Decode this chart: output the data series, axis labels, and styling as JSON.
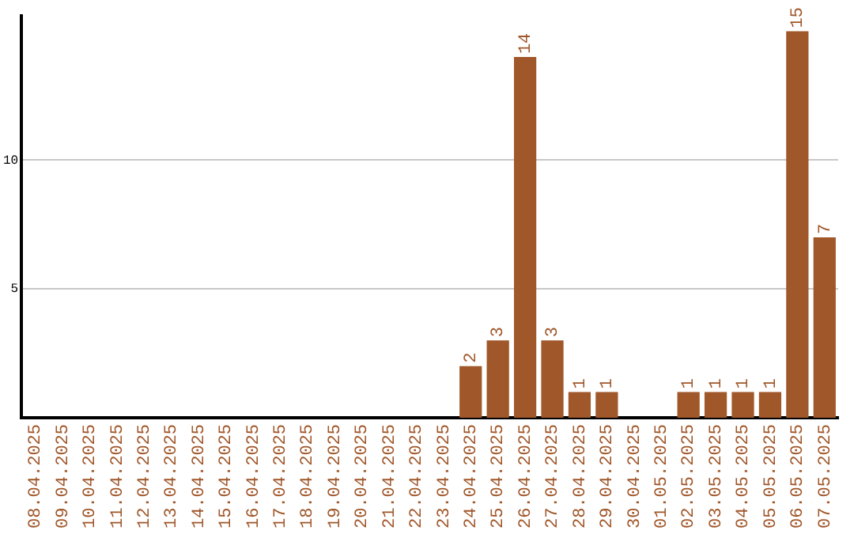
{
  "chart_data": {
    "type": "bar",
    "categories": [
      "08.04.2025",
      "09.04.2025",
      "10.04.2025",
      "11.04.2025",
      "12.04.2025",
      "13.04.2025",
      "14.04.2025",
      "15.04.2025",
      "16.04.2025",
      "17.04.2025",
      "18.04.2025",
      "19.04.2025",
      "20.04.2025",
      "21.04.2025",
      "22.04.2025",
      "23.04.2025",
      "24.04.2025",
      "25.04.2025",
      "26.04.2025",
      "27.04.2025",
      "28.04.2025",
      "29.04.2025",
      "30.04.2025",
      "01.05.2025",
      "02.05.2025",
      "03.05.2025",
      "04.05.2025",
      "05.05.2025",
      "06.05.2025",
      "07.05.2025"
    ],
    "values": [
      0,
      0,
      0,
      0,
      0,
      0,
      0,
      0,
      0,
      0,
      0,
      0,
      0,
      0,
      0,
      0,
      2,
      3,
      14,
      3,
      1,
      1,
      0,
      0,
      1,
      1,
      1,
      1,
      15,
      7
    ],
    "value_labels": [
      null,
      null,
      null,
      null,
      null,
      null,
      null,
      null,
      null,
      null,
      null,
      null,
      null,
      null,
      null,
      null,
      "2",
      "3",
      "14",
      "3",
      "1",
      "1",
      null,
      null,
      "1",
      "1",
      "1",
      "1",
      "15",
      "7"
    ],
    "color": "#a0572a",
    "ylim": [
      0,
      15.6
    ],
    "yticks": [
      5,
      10
    ],
    "grid": "y",
    "legend": false
  }
}
